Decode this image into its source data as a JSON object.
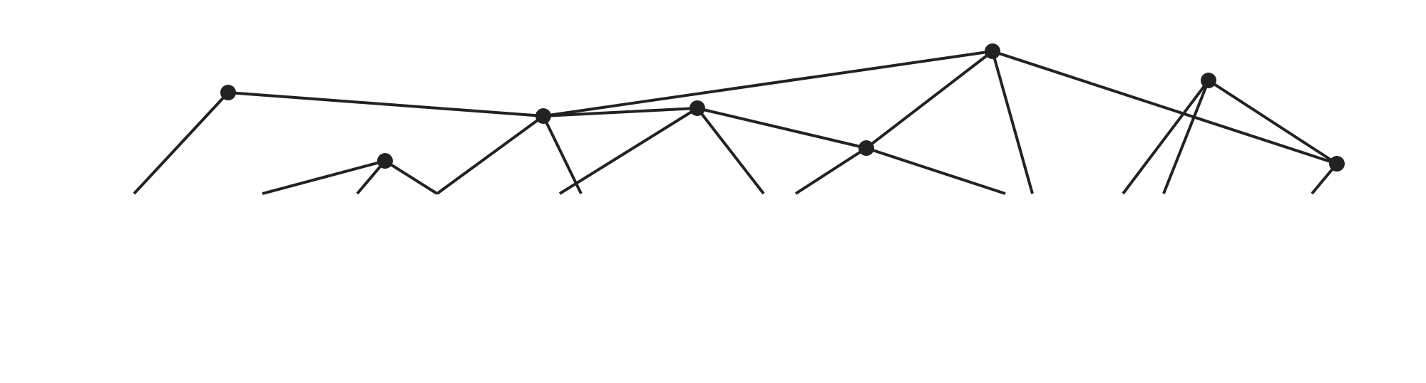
{
  "diagram": {
    "type": "network-graph",
    "colors": {
      "background": "#ffffff",
      "node": "#222222",
      "edge": "#222222"
    },
    "nodes": [
      {
        "id": "n1"
      },
      {
        "id": "n2"
      },
      {
        "id": "n3"
      },
      {
        "id": "n4"
      },
      {
        "id": "n5"
      },
      {
        "id": "n6"
      },
      {
        "id": "n7"
      },
      {
        "id": "n8"
      },
      {
        "id": "n9"
      }
    ],
    "edges": [
      {
        "from": "n1",
        "to": "n2"
      },
      {
        "from": "n2",
        "to": "n7"
      },
      {
        "from": "n7",
        "to": "n6"
      },
      {
        "from": "n7",
        "to": "n9"
      },
      {
        "from": "n8",
        "to": "n9"
      },
      {
        "from": "n5",
        "to": "n6"
      },
      {
        "from": "n4",
        "to": "n2"
      }
    ],
    "clipped_edges": [
      {
        "from": "n1"
      },
      {
        "from": "n3"
      },
      {
        "from": "n3"
      },
      {
        "from": "n3"
      },
      {
        "from": "n4"
      },
      {
        "from": "n4"
      },
      {
        "from": "n5"
      },
      {
        "from": "n5"
      },
      {
        "from": "n6"
      },
      {
        "from": "n6"
      },
      {
        "from": "n7"
      },
      {
        "from": "n8"
      },
      {
        "from": "n8"
      },
      {
        "from": "n9"
      }
    ]
  }
}
